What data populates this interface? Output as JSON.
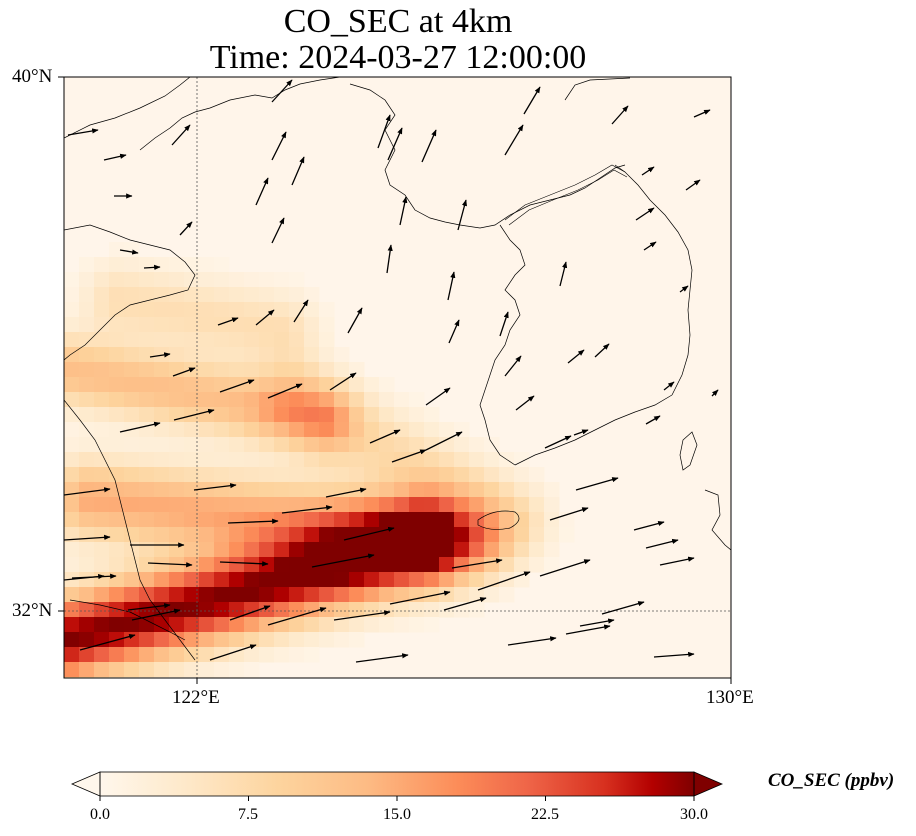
{
  "title": {
    "line1": "CO_SEC at 4km",
    "line2": "Time: 2024-03-27 12:00:00"
  },
  "map": {
    "variable": "CO_SEC",
    "height": "4km",
    "time": "2024-03-27 12:00:00",
    "lon_range": [
      120,
      130
    ],
    "lat_range": [
      31,
      40
    ],
    "gridlines": {
      "lon": [
        122
      ],
      "lat": [
        32
      ]
    },
    "lon_tick_labels": [
      "122°E",
      "130°E"
    ],
    "lat_tick_labels": [
      "40°N",
      "32°N"
    ],
    "colormap": "OrRd",
    "colors": {
      "low": "#fff7ec",
      "mid": "#fc8d59",
      "high": "#7f0000"
    }
  },
  "colorbar": {
    "label": "CO_SEC (ppbv)",
    "min": 0,
    "max": 30,
    "extend": "both",
    "ticks": [
      "0.0",
      "7.5",
      "15.0",
      "22.5",
      "30.0"
    ]
  }
}
